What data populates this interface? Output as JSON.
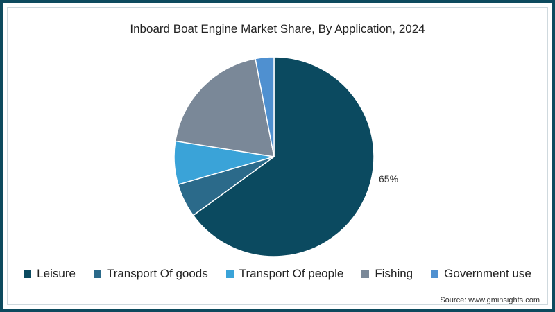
{
  "chart_data": {
    "type": "pie",
    "title": "Inboard Boat Engine Market Share, By Application, 2024",
    "categories": [
      "Leisure",
      "Transport Of goods",
      "Transport Of people",
      "Fishing",
      "Government use"
    ],
    "values": [
      65,
      5.5,
      7,
      19.5,
      3
    ],
    "colors": [
      "#0b4a60",
      "#2b6a8a",
      "#3aa3d8",
      "#7a8898",
      "#4f90d0"
    ],
    "annotations": [
      {
        "category": "Leisure",
        "label": "65%"
      }
    ],
    "legend_position": "bottom",
    "start_angle_deg": 0,
    "direction": "clockwise"
  },
  "title": "Inboard Boat Engine Market Share, By Application, 2024",
  "leisure_label": "65%",
  "legend": [
    {
      "label": "Leisure",
      "color": "#0b4a60"
    },
    {
      "label": "Transport Of goods",
      "color": "#2b6a8a"
    },
    {
      "label": "Transport Of people",
      "color": "#3aa3d8"
    },
    {
      "label": "Fishing",
      "color": "#7a8898"
    },
    {
      "label": "Government use",
      "color": "#4f90d0"
    }
  ],
  "source": "Source: www.gminsights.com",
  "frame_color": "#0d4a5e"
}
